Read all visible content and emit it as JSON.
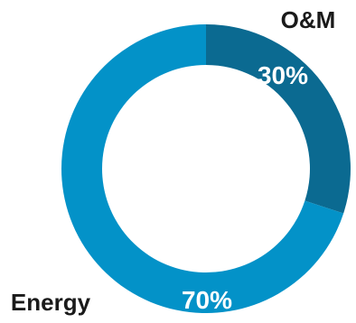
{
  "chart_data": {
    "type": "pie",
    "donut": true,
    "categories": [
      "O&M",
      "Energy"
    ],
    "values": [
      30,
      70
    ],
    "value_labels": [
      "30%",
      "70%"
    ],
    "colors": [
      "#0b6a91",
      "#0392c8"
    ]
  }
}
